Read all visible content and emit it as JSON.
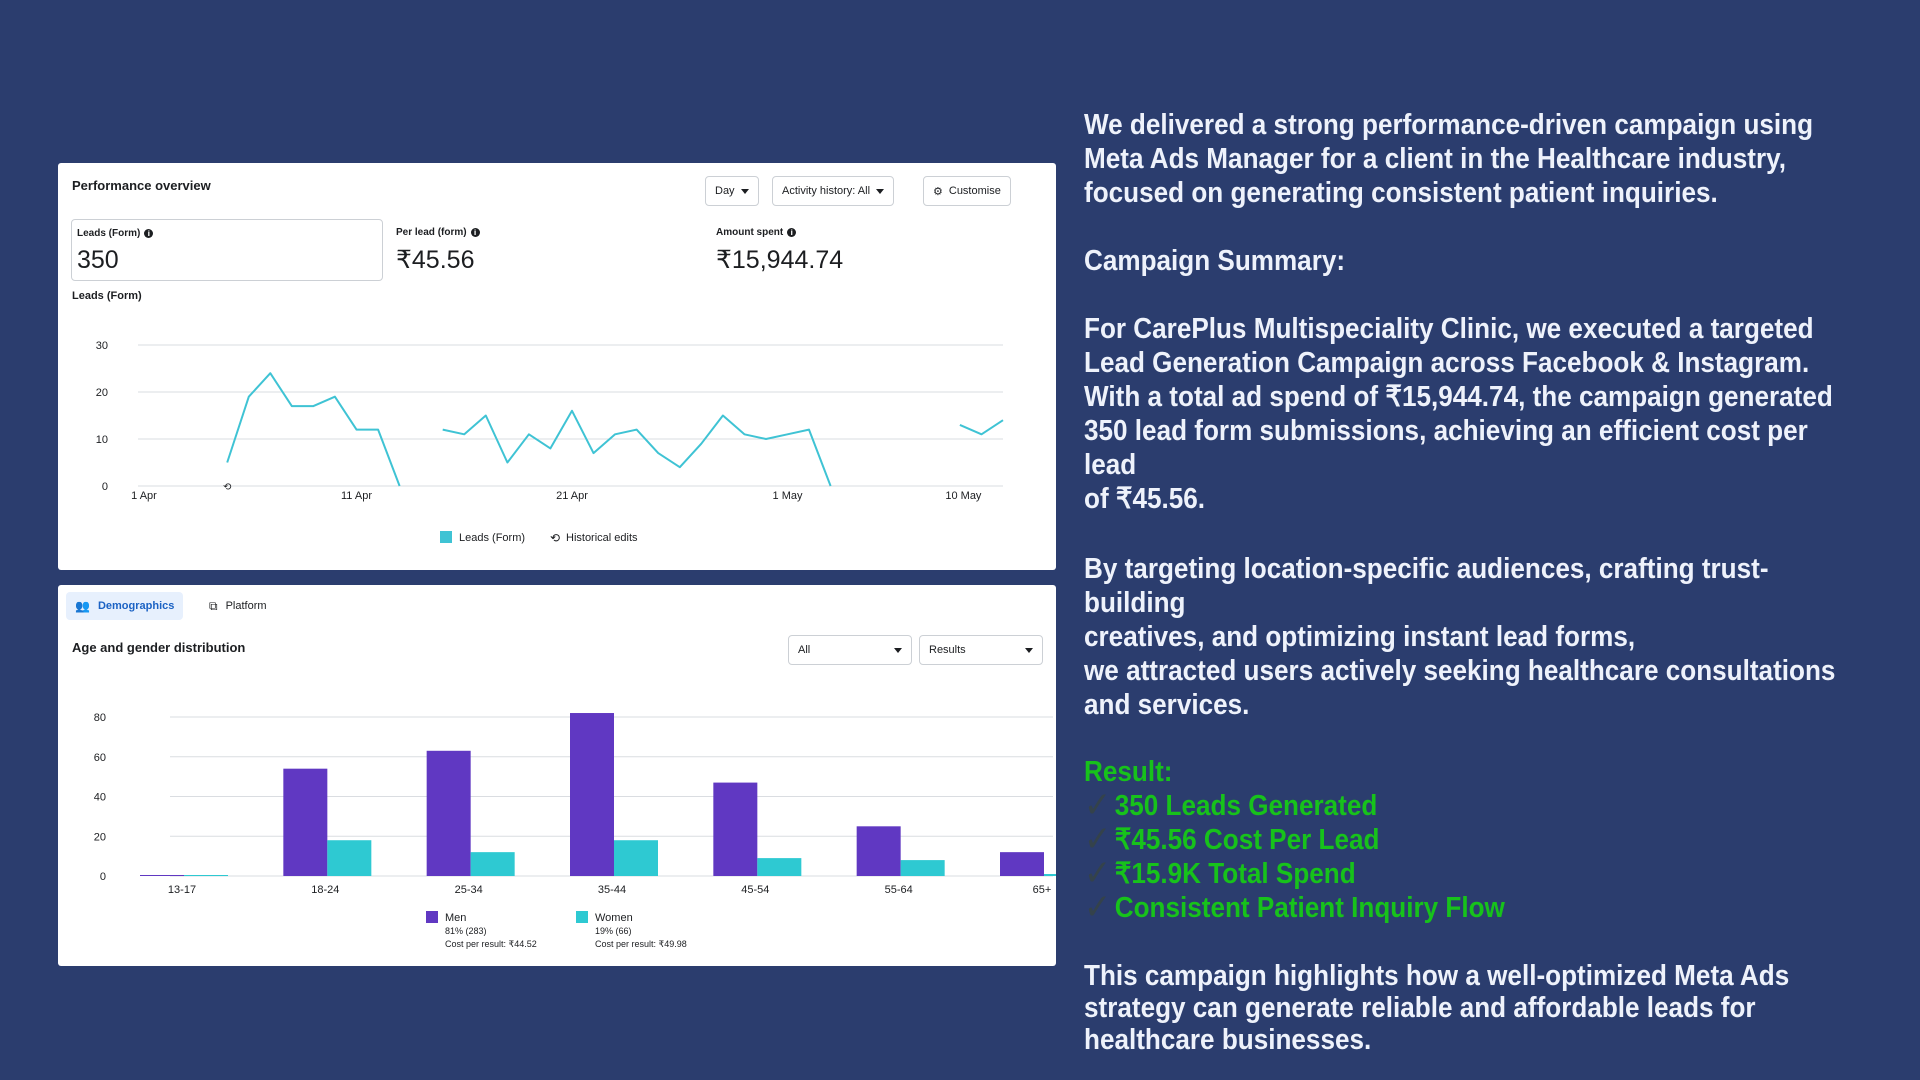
{
  "performance": {
    "title": "Performance overview",
    "controls": {
      "day": "Day",
      "activity": "Activity history: All",
      "customise": "Customise"
    },
    "metrics": [
      {
        "label": "Leads (Form)",
        "value": "350"
      },
      {
        "label": "Per lead (form)",
        "value": "₹45.56"
      },
      {
        "label": "Amount spent",
        "value": "₹15,944.74"
      }
    ],
    "chart_title": "Leads (Form)"
  },
  "demographics": {
    "tabs": {
      "demographics": "Demographics",
      "platform": "Platform"
    },
    "title": "Age and gender distribution",
    "filters": {
      "all": "All",
      "results": "Results"
    }
  },
  "chart_data": [
    {
      "type": "line",
      "title": "Leads (Form)",
      "x_tick_labels": [
        "1 Apr",
        "11 Apr",
        "21 Apr",
        "1 May",
        "10 May"
      ],
      "ylim": [
        0,
        30
      ],
      "y_ticks": [
        0,
        10,
        20,
        30
      ],
      "grid": true,
      "legend_position": "bottom",
      "series": [
        {
          "name": "Leads (Form)",
          "color": "#3fc3d4",
          "segments": [
            {
              "start_day": 4,
              "values": [
                5,
                19,
                24,
                17,
                17,
                19,
                12,
                12,
                0
              ]
            },
            {
              "start_day": 14,
              "values": [
                12,
                11,
                15,
                5,
                11,
                8,
                16,
                7,
                11,
                12,
                7,
                4,
                9,
                15,
                11,
                10,
                11,
                12,
                0
              ]
            },
            {
              "start_day": 38,
              "values": [
                13,
                11,
                14
              ]
            }
          ]
        }
      ],
      "annotations": [
        {
          "label": "Historical edits",
          "day": 4
        }
      ]
    },
    {
      "type": "bar",
      "title": "Age and gender distribution",
      "categories": [
        "13-17",
        "18-24",
        "25-34",
        "35-44",
        "45-54",
        "55-64",
        "65+"
      ],
      "ylim": [
        0,
        80
      ],
      "y_ticks": [
        0,
        20,
        40,
        60,
        80
      ],
      "grid": true,
      "legend_position": "bottom",
      "series": [
        {
          "name": "Men",
          "color": "#6038c2",
          "share": "81% (283)",
          "cost": "Cost per result: ₹44.52",
          "values": [
            0.5,
            54,
            63,
            82,
            47,
            25,
            12
          ]
        },
        {
          "name": "Women",
          "color": "#2ec9d2",
          "share": "19% (66)",
          "cost": "Cost per result: ₹49.98",
          "values": [
            0.5,
            18,
            12,
            18,
            9,
            8,
            1
          ]
        }
      ]
    }
  ],
  "right_panel": {
    "intro": "We delivered a strong performance-driven campaign using\nMeta Ads Manager for a client in the Healthcare industry,\nfocused on generating consistent patient inquiries.",
    "summary_heading": "Campaign Summary:",
    "summary_body": "For CarePlus Multispeciality Clinic, we executed a targeted\nLead Generation Campaign across Facebook & Instagram.\nWith a total ad spend of ₹15,944.74, the campaign generated\n350 lead form submissions, achieving an efficient cost per\n lead\n of ₹45.56.",
    "targeting": "By targeting location-specific audiences, crafting trust-\nbuilding\ncreatives, and optimizing instant lead forms,\nwe attracted users actively seeking healthcare consultations\nand services.",
    "result_heading": "Result:",
    "results": [
      "350 Leads Generated",
      "₹45.56 Cost Per Lead",
      "₹15.9K Total Spend",
      "Consistent Patient Inquiry Flow"
    ],
    "closing": "This campaign highlights how a well-optimized Meta Ads\nstrategy can generate reliable and affordable leads for\n healthcare businesses.",
    "check_icon": "checkmark-icon",
    "colors": {
      "text": "#eef2fb",
      "result": "#17c21b",
      "background": "#2b3d6e"
    }
  }
}
